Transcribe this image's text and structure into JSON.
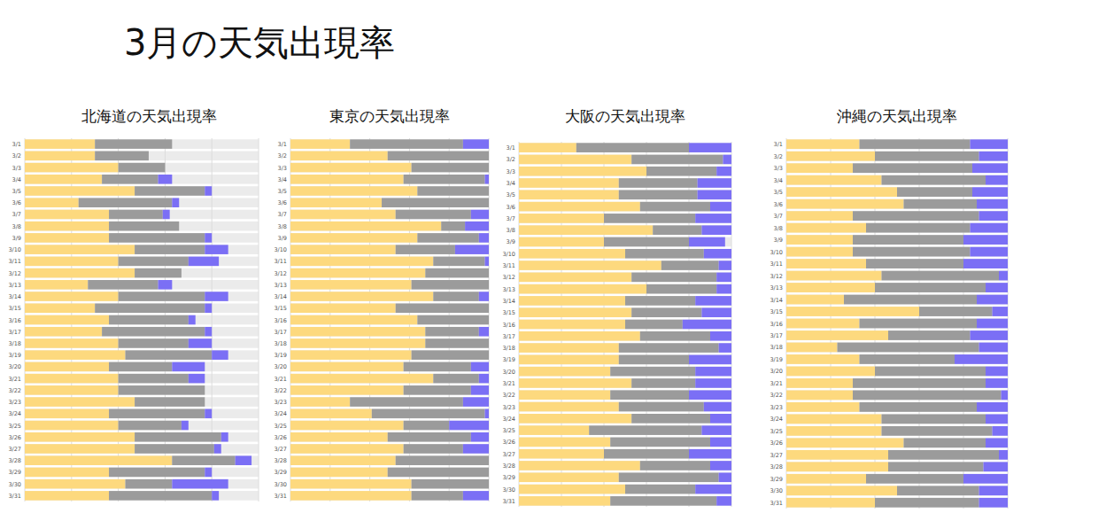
{
  "title": "3月の天気出現率",
  "chart_data": [
    {
      "type": "bar",
      "orientation": "horizontal",
      "stacked": true,
      "grid": true,
      "tick_labels": "y",
      "title": "北海道の天気出現率",
      "categories": [
        "3/1",
        "3/2",
        "3/3",
        "3/4",
        "3/5",
        "3/6",
        "3/7",
        "3/8",
        "3/9",
        "3/10",
        "3/11",
        "3/12",
        "3/13",
        "3/14",
        "3/15",
        "3/16",
        "3/17",
        "3/18",
        "3/19",
        "3/20",
        "3/21",
        "3/22",
        "3/23",
        "3/24",
        "3/25",
        "3/26",
        "3/27",
        "3/28",
        "3/29",
        "3/30",
        "3/31"
      ],
      "xlim": [
        0,
        100
      ],
      "xticks": [
        0,
        20,
        40,
        60,
        80,
        100
      ],
      "series": [
        {
          "color": "#fdd97e",
          "values": [
            30,
            30,
            40,
            33,
            47,
            23,
            36,
            36,
            36,
            47,
            40,
            47,
            27,
            40,
            30,
            36,
            33,
            40,
            43,
            36,
            40,
            40,
            47,
            36,
            40,
            47,
            47,
            63,
            36,
            43,
            36
          ]
        },
        {
          "color": "#9b9b9b",
          "values": [
            33,
            23,
            20,
            24,
            30,
            40,
            23,
            30,
            41,
            30,
            30,
            20,
            30,
            37,
            47,
            34,
            44,
            30,
            37,
            27,
            30,
            37,
            30,
            41,
            27,
            37,
            34,
            27,
            41,
            20,
            44
          ]
        },
        {
          "color": "#7b6ff5",
          "values": [
            0,
            0,
            0,
            6,
            3,
            3,
            3,
            0,
            3,
            10,
            13,
            0,
            6,
            10,
            3,
            3,
            3,
            10,
            7,
            14,
            7,
            0,
            0,
            3,
            3,
            3,
            3,
            7,
            3,
            24,
            3
          ]
        }
      ]
    },
    {
      "type": "bar",
      "orientation": "horizontal",
      "stacked": true,
      "grid": true,
      "tick_labels": "y",
      "title": "東京の天気出現率",
      "categories": [
        "3/1",
        "3/2",
        "3/3",
        "3/4",
        "3/5",
        "3/6",
        "3/7",
        "3/8",
        "3/9",
        "3/10",
        "3/11",
        "3/12",
        "3/13",
        "3/14",
        "3/15",
        "3/16",
        "3/17",
        "3/18",
        "3/19",
        "3/20",
        "3/21",
        "3/22",
        "3/23",
        "3/24",
        "3/25",
        "3/26",
        "3/27",
        "3/28",
        "3/29",
        "3/30",
        "3/31"
      ],
      "xlim": [
        0,
        100
      ],
      "xticks": [
        0,
        20,
        40,
        60,
        80,
        100
      ],
      "series": [
        {
          "color": "#fdd97e",
          "values": [
            30,
            49,
            61,
            57,
            64,
            46,
            53,
            76,
            64,
            53,
            72,
            68,
            61,
            72,
            53,
            64,
            68,
            68,
            61,
            57,
            72,
            57,
            30,
            41,
            57,
            49,
            57,
            53,
            49,
            61,
            61
          ]
        },
        {
          "color": "#9b9b9b",
          "values": [
            57,
            51,
            39,
            41,
            36,
            54,
            38,
            12,
            31,
            30,
            26,
            32,
            39,
            23,
            47,
            36,
            27,
            32,
            39,
            34,
            23,
            34,
            57,
            57,
            23,
            42,
            30,
            47,
            51,
            39,
            26
          ]
        },
        {
          "color": "#7b6ff5",
          "values": [
            13,
            0,
            0,
            2,
            0,
            0,
            9,
            12,
            5,
            17,
            2,
            0,
            0,
            5,
            0,
            0,
            5,
            0,
            0,
            9,
            5,
            9,
            13,
            2,
            20,
            9,
            13,
            0,
            0,
            0,
            13
          ]
        }
      ]
    },
    {
      "type": "bar",
      "orientation": "horizontal",
      "stacked": true,
      "grid": true,
      "tick_labels": "y",
      "title": "大阪の天気出現率",
      "categories": [
        "3/1",
        "3/2",
        "3/3",
        "3/4",
        "3/5",
        "3/6",
        "3/7",
        "3/8",
        "3/9",
        "3/10",
        "3/11",
        "3/12",
        "3/13",
        "3/14",
        "3/15",
        "3/16",
        "3/17",
        "3/18",
        "3/19",
        "3/20",
        "3/21",
        "3/22",
        "3/23",
        "3/24",
        "3/25",
        "3/26",
        "3/27",
        "3/28",
        "3/29",
        "3/30",
        "3/31"
      ],
      "xlim": [
        0,
        100
      ],
      "xticks": [
        0,
        20,
        40,
        60,
        80,
        100
      ],
      "series": [
        {
          "color": "#fdd97e",
          "values": [
            27,
            53,
            60,
            47,
            47,
            57,
            40,
            63,
            40,
            50,
            67,
            53,
            60,
            50,
            53,
            50,
            57,
            47,
            47,
            43,
            53,
            43,
            47,
            53,
            33,
            43,
            40,
            57,
            47,
            50,
            43
          ]
        },
        {
          "color": "#9b9b9b",
          "values": [
            53,
            43,
            33,
            37,
            37,
            33,
            43,
            23,
            40,
            37,
            27,
            40,
            33,
            33,
            33,
            27,
            33,
            47,
            33,
            40,
            30,
            37,
            40,
            37,
            53,
            47,
            40,
            33,
            47,
            33,
            50
          ]
        },
        {
          "color": "#7b6ff5",
          "values": [
            20,
            4,
            7,
            16,
            16,
            10,
            17,
            14,
            17,
            13,
            6,
            7,
            7,
            17,
            14,
            23,
            10,
            6,
            20,
            17,
            17,
            20,
            13,
            10,
            14,
            10,
            20,
            10,
            6,
            17,
            7
          ]
        }
      ]
    },
    {
      "type": "bar",
      "orientation": "horizontal",
      "stacked": true,
      "grid": true,
      "tick_labels": "y",
      "title": "沖縄の天気出現率",
      "categories": [
        "3/1",
        "3/2",
        "3/3",
        "3/4",
        "3/5",
        "3/6",
        "3/7",
        "3/8",
        "3/9",
        "3/10",
        "3/11",
        "3/12",
        "3/13",
        "3/14",
        "3/15",
        "3/16",
        "3/17",
        "3/18",
        "3/19",
        "3/20",
        "3/21",
        "3/22",
        "3/23",
        "3/24",
        "3/25",
        "3/26",
        "3/27",
        "3/28",
        "3/29",
        "3/30",
        "3/31"
      ],
      "xlim": [
        0,
        100
      ],
      "xticks": [
        0,
        20,
        40,
        60,
        80,
        100
      ],
      "series": [
        {
          "color": "#fdd97e",
          "values": [
            33,
            40,
            30,
            43,
            50,
            53,
            30,
            36,
            30,
            30,
            36,
            43,
            40,
            26,
            60,
            33,
            46,
            23,
            33,
            40,
            30,
            30,
            33,
            43,
            43,
            53,
            46,
            46,
            36,
            50,
            40
          ]
        },
        {
          "color": "#9b9b9b",
          "values": [
            50,
            47,
            54,
            47,
            34,
            33,
            57,
            47,
            50,
            53,
            44,
            53,
            50,
            60,
            33,
            53,
            37,
            64,
            43,
            50,
            60,
            67,
            53,
            47,
            50,
            37,
            50,
            43,
            44,
            37,
            47
          ]
        },
        {
          "color": "#7b6ff5",
          "values": [
            17,
            13,
            16,
            10,
            16,
            14,
            13,
            17,
            20,
            17,
            20,
            4,
            10,
            14,
            7,
            14,
            17,
            13,
            24,
            10,
            10,
            3,
            14,
            10,
            7,
            10,
            4,
            11,
            20,
            13,
            13
          ]
        }
      ]
    }
  ]
}
